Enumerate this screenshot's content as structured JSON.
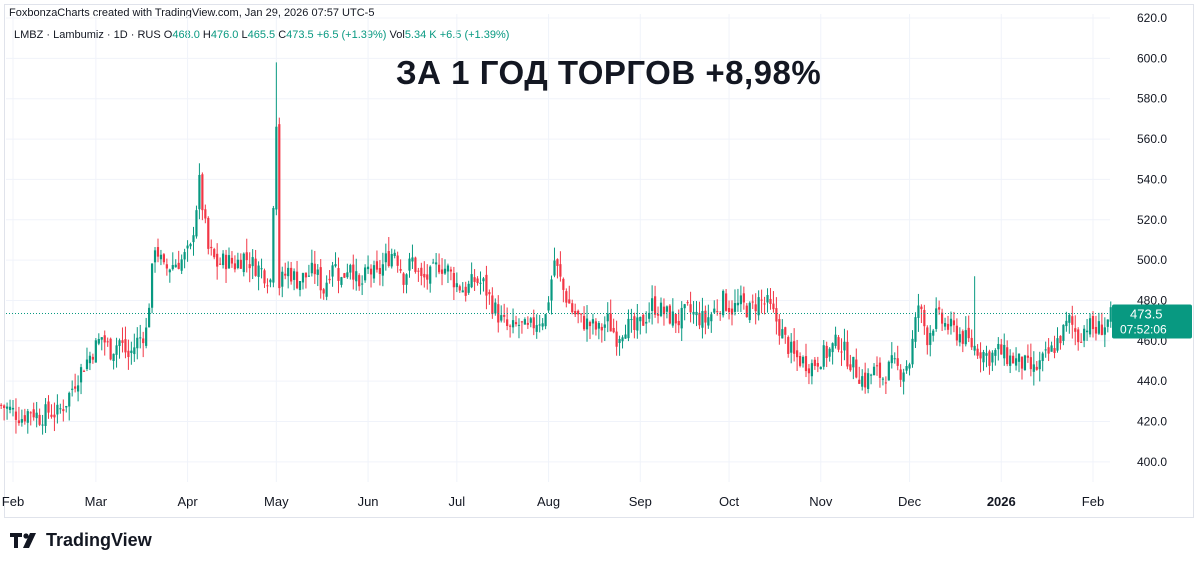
{
  "credit": "FoxbonzaCharts created with TradingView.com, Jan 29, 2026 07:57 UTC-5",
  "legend": {
    "symbol": "LMBZ · Lambumiz · 1D · RUS",
    "o_label": "O",
    "o_value": "468.0",
    "h_label": "H",
    "h_value": "476.0",
    "l_label": "L",
    "l_value": "465.5",
    "c_label": "C",
    "c_value": "473.5",
    "change": "+6.5 (+1.39%)",
    "vol_label": "Vol",
    "vol_value": "5.34 K",
    "vol_change": "+6.5 (+1.39%)"
  },
  "headline": "ЗА 1 ГОД ТОРГОВ +8,98%",
  "last_price": {
    "price": "473.5",
    "time": "07:52:06"
  },
  "brand": {
    "name": "TradingView",
    "logo_icon": "tradingview-logo-icon"
  },
  "colors": {
    "up": "#089981",
    "down": "#f23645",
    "grid": "#f0f3fa",
    "axis_text": "#131722"
  },
  "chart_data": {
    "type": "candlestick",
    "title": "ЗА 1 ГОД ТОРГОВ +8,98%",
    "ylim": [
      390,
      622
    ],
    "y_ticks": [
      "620.0",
      "600.0",
      "580.0",
      "560.0",
      "540.0",
      "520.0",
      "500.0",
      "480.0",
      "460.0",
      "440.0",
      "420.0",
      "400.0"
    ],
    "y_tick_values": [
      620,
      600,
      580,
      560,
      540,
      520,
      500,
      480,
      460,
      440,
      420,
      400
    ],
    "x_ticks": [
      {
        "label": "Feb",
        "day": 0,
        "bold": false
      },
      {
        "label": "Mar",
        "day": 28,
        "bold": false
      },
      {
        "label": "Apr",
        "day": 59,
        "bold": false
      },
      {
        "label": "May",
        "day": 89,
        "bold": false
      },
      {
        "label": "Jun",
        "day": 120,
        "bold": false
      },
      {
        "label": "Jul",
        "day": 150,
        "bold": false
      },
      {
        "label": "Aug",
        "day": 181,
        "bold": false
      },
      {
        "label": "Sep",
        "day": 212,
        "bold": false
      },
      {
        "label": "Oct",
        "day": 242,
        "bold": false
      },
      {
        "label": "Nov",
        "day": 273,
        "bold": false
      },
      {
        "label": "Dec",
        "day": 303,
        "bold": false
      },
      {
        "label": "2026",
        "day": 334,
        "bold": true
      },
      {
        "label": "Feb",
        "day": 365,
        "bold": false
      }
    ],
    "last_close": 473.5,
    "grid": true,
    "series_close": [
      [
        -4,
        428
      ],
      [
        0,
        425
      ],
      [
        3,
        422
      ],
      [
        6,
        426
      ],
      [
        9,
        422
      ],
      [
        12,
        425
      ],
      [
        15,
        424
      ],
      [
        18,
        430
      ],
      [
        21,
        440
      ],
      [
        24,
        448
      ],
      [
        27,
        455
      ],
      [
        30,
        462
      ],
      [
        33,
        455
      ],
      [
        36,
        460
      ],
      [
        39,
        452
      ],
      [
        42,
        460
      ],
      [
        45,
        465
      ],
      [
        48,
        508
      ],
      [
        51,
        495
      ],
      [
        54,
        498
      ],
      [
        57,
        500
      ],
      [
        60,
        505
      ],
      [
        63,
        538
      ],
      [
        66,
        505
      ],
      [
        69,
        498
      ],
      [
        72,
        500
      ],
      [
        75,
        498
      ],
      [
        78,
        502
      ],
      [
        81,
        498
      ],
      [
        84,
        495
      ],
      [
        87,
        490
      ],
      [
        89,
        570
      ],
      [
        90,
        488
      ],
      [
        93,
        495
      ],
      [
        96,
        490
      ],
      [
        99,
        492
      ],
      [
        102,
        495
      ],
      [
        105,
        485
      ],
      [
        108,
        500
      ],
      [
        111,
        490
      ],
      [
        114,
        500
      ],
      [
        117,
        485
      ],
      [
        120,
        495
      ],
      [
        123,
        492
      ],
      [
        126,
        500
      ],
      [
        129,
        505
      ],
      [
        132,
        492
      ],
      [
        135,
        500
      ],
      [
        138,
        490
      ],
      [
        141,
        492
      ],
      [
        144,
        498
      ],
      [
        147,
        495
      ],
      [
        150,
        488
      ],
      [
        153,
        485
      ],
      [
        156,
        490
      ],
      [
        159,
        488
      ],
      [
        162,
        478
      ],
      [
        165,
        470
      ],
      [
        168,
        465
      ],
      [
        171,
        468
      ],
      [
        174,
        465
      ],
      [
        177,
        470
      ],
      [
        180,
        472
      ],
      [
        183,
        500
      ],
      [
        186,
        485
      ],
      [
        189,
        475
      ],
      [
        192,
        470
      ],
      [
        195,
        468
      ],
      [
        198,
        465
      ],
      [
        201,
        470
      ],
      [
        204,
        462
      ],
      [
        207,
        468
      ],
      [
        210,
        465
      ],
      [
        213,
        470
      ],
      [
        216,
        478
      ],
      [
        219,
        475
      ],
      [
        222,
        472
      ],
      [
        225,
        470
      ],
      [
        228,
        475
      ],
      [
        231,
        472
      ],
      [
        234,
        470
      ],
      [
        237,
        475
      ],
      [
        240,
        480
      ],
      [
        243,
        476
      ],
      [
        246,
        478
      ],
      [
        249,
        475
      ],
      [
        252,
        480
      ],
      [
        255,
        478
      ],
      [
        258,
        470
      ],
      [
        261,
        460
      ],
      [
        264,
        452
      ],
      [
        267,
        450
      ],
      [
        270,
        448
      ],
      [
        273,
        452
      ],
      [
        276,
        455
      ],
      [
        279,
        460
      ],
      [
        282,
        452
      ],
      [
        285,
        445
      ],
      [
        288,
        440
      ],
      [
        291,
        445
      ],
      [
        294,
        442
      ],
      [
        297,
        448
      ],
      [
        300,
        445
      ],
      [
        303,
        450
      ],
      [
        306,
        478
      ],
      [
        309,
        462
      ],
      [
        312,
        472
      ],
      [
        315,
        468
      ],
      [
        318,
        465
      ],
      [
        321,
        462
      ],
      [
        324,
        458
      ],
      [
        327,
        455
      ],
      [
        330,
        452
      ],
      [
        333,
        455
      ],
      [
        336,
        452
      ],
      [
        339,
        450
      ],
      [
        342,
        448
      ],
      [
        345,
        445
      ],
      [
        348,
        450
      ],
      [
        351,
        455
      ],
      [
        354,
        462
      ],
      [
        357,
        470
      ],
      [
        360,
        462
      ],
      [
        363,
        468
      ],
      [
        366,
        465
      ],
      [
        369,
        468
      ],
      [
        372,
        473.5
      ]
    ]
  }
}
